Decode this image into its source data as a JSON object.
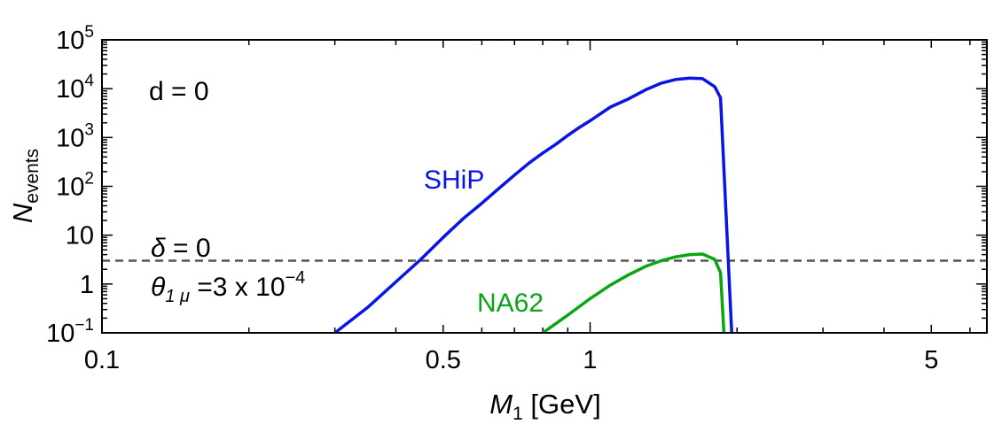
{
  "chart_data": {
    "type": "line",
    "xscale": "log",
    "yscale": "log",
    "xlim": [
      0.1,
      6.5
    ],
    "ylim": [
      0.1,
      100000
    ],
    "xlabel": {
      "main": "M",
      "sub": "1",
      "rest": " [GeV]"
    },
    "ylabel": {
      "main": "N",
      "sub": "events"
    },
    "xticks": [
      {
        "value": 0.1,
        "label": "0.1"
      },
      {
        "value": 0.5,
        "label": "0.5"
      },
      {
        "value": 1,
        "label": "1"
      },
      {
        "value": 5,
        "label": "5"
      }
    ],
    "yticks": [
      {
        "value": 0.1,
        "base": "10",
        "exp": "−1"
      },
      {
        "value": 1,
        "base": "1",
        "exp": ""
      },
      {
        "value": 10,
        "base": "10",
        "exp": ""
      },
      {
        "value": 100,
        "base": "10",
        "exp": "2"
      },
      {
        "value": 1000,
        "base": "10",
        "exp": "3"
      },
      {
        "value": 10000,
        "base": "10",
        "exp": "4"
      },
      {
        "value": 100000,
        "base": "10",
        "exp": "5"
      }
    ],
    "threshold": {
      "y": 3,
      "color": "#555555",
      "style": "dashed"
    },
    "series": [
      {
        "name": "SHiP",
        "color": "#0a14e6",
        "x": [
          0.3,
          0.35,
          0.4,
          0.45,
          0.5,
          0.55,
          0.6,
          0.65,
          0.7,
          0.75,
          0.8,
          0.85,
          0.9,
          0.95,
          1.0,
          1.1,
          1.2,
          1.3,
          1.4,
          1.5,
          1.6,
          1.7,
          1.8,
          1.85,
          1.95
        ],
        "y": [
          0.1,
          0.33,
          1.1,
          3.2,
          9,
          22,
          45,
          90,
          170,
          300,
          480,
          720,
          1100,
          1600,
          2200,
          4200,
          6200,
          9500,
          13000,
          15500,
          16500,
          16000,
          11000,
          6500,
          0.1
        ]
      },
      {
        "name": "NA62",
        "color": "#0aa514",
        "x": [
          0.8,
          0.9,
          1.0,
          1.1,
          1.2,
          1.3,
          1.4,
          1.5,
          1.6,
          1.7,
          1.8,
          1.85,
          1.88
        ],
        "y": [
          0.1,
          0.23,
          0.5,
          0.95,
          1.55,
          2.3,
          3.0,
          3.6,
          4.0,
          4.1,
          3.2,
          1.7,
          0.1
        ]
      }
    ],
    "annotations": {
      "d_label": "d = 0",
      "delta_symbol": "δ",
      "delta_value": " = 0",
      "theta_symbol": "θ",
      "theta_sub": "1 μ",
      "theta_value": " =3 x 10",
      "theta_exp": "−4",
      "ship_label": "SHiP",
      "na62_label": "NA62"
    }
  }
}
